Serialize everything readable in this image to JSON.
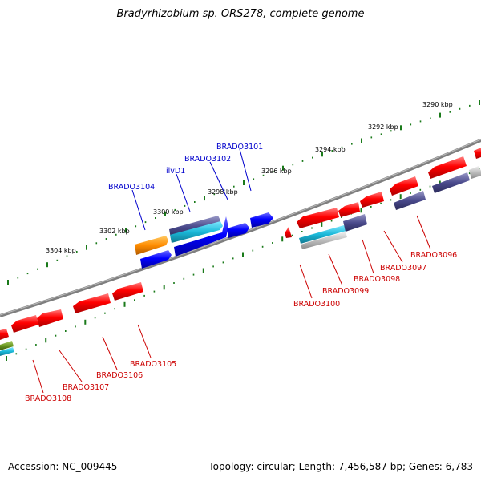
{
  "title": "Bradyrhizobium sp. ORS278, complete genome",
  "footer": {
    "accession": "Accession: NC_009445",
    "topology": "Topology: circular",
    "length": "Length: 7,456,587 bp",
    "genes": "Genes: 6,783"
  },
  "scale_labels": [
    "3290 kbp",
    "3292 kbp",
    "3294 kbp",
    "3296 kbp",
    "3298 kbp",
    "3300 kbp",
    "3302 kbp",
    "3304 kbp"
  ],
  "genes_top": [
    "BRADO3101",
    "BRADO3102",
    "ilvD1",
    "BRADO3104"
  ],
  "genes_bottom": [
    "BRADO3096",
    "BRADO3097",
    "BRADO3098",
    "BRADO3099",
    "BRADO3100",
    "BRADO3105",
    "BRADO3106",
    "BRADO3107",
    "BRADO3108"
  ],
  "colors": {
    "top_label": "#0000cc",
    "bottom_label": "#cc0000",
    "tick": "#1a7a1a",
    "backbone": "#8c8c8c",
    "red_gene": "#ee0000",
    "blue_gene": "#0000ee",
    "navy_gene": "#40407a",
    "cyan_gene": "#1ab0cc",
    "orange_gene": "#ff8c00"
  }
}
